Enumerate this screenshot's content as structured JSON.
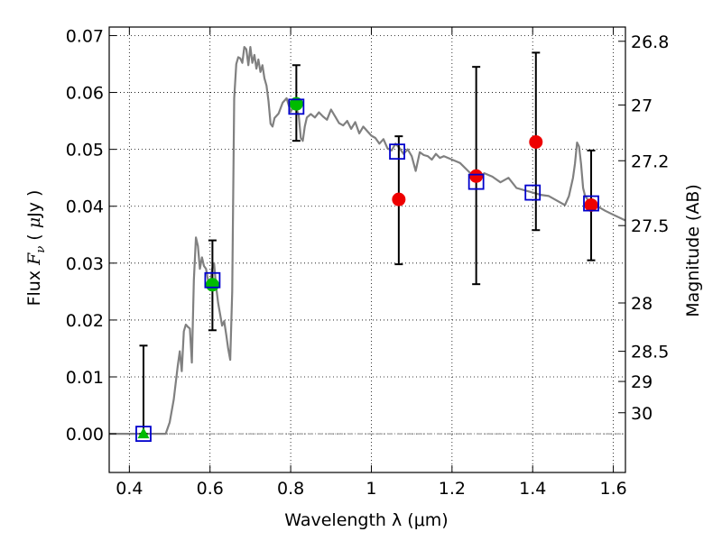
{
  "chart_data": {
    "type": "scatter",
    "xlabel": "Wavelength  λ (μm)",
    "ylabel": "Flux  F_ν  ( μJy )",
    "ylabel_parts": [
      "Flux  ",
      "F",
      "ν",
      "  ( ",
      "μ",
      "Jy )"
    ],
    "ylabel_right": "Magnitude (AB)",
    "xlim": [
      0.35,
      1.63
    ],
    "ylim": [
      -0.0068,
      0.0715
    ],
    "grid": true,
    "x_ticks": [
      0.4,
      0.6,
      0.8,
      1.0,
      1.2,
      1.4,
      1.6
    ],
    "x_tick_labels": [
      "0.4",
      "0.6",
      "0.8",
      "1",
      "1.2",
      "1.4",
      "1.6"
    ],
    "y_ticks": [
      0.0,
      0.01,
      0.02,
      0.03,
      0.04,
      0.05,
      0.06,
      0.07
    ],
    "y_tick_labels": [
      "0.00",
      "0.01",
      "0.02",
      "0.03",
      "0.04",
      "0.05",
      "0.06",
      "0.07"
    ],
    "right_ticks": [
      {
        "label": "26.8",
        "flux": 0.069
      },
      {
        "label": "27",
        "flux": 0.0578
      },
      {
        "label": "27.2",
        "flux": 0.048
      },
      {
        "label": "27.5",
        "flux": 0.0366
      },
      {
        "label": "28",
        "flux": 0.023
      },
      {
        "label": "28.5",
        "flux": 0.0145
      },
      {
        "label": "29",
        "flux": 0.0092
      },
      {
        "label": "30",
        "flux": 0.0037
      }
    ],
    "zero_line": 0.0,
    "colors": {
      "model": "#808080",
      "model_photometry": "#0000cc",
      "detected": "#00bb00",
      "nondetected": "#ee0000",
      "errorbar": "#000000"
    },
    "model_sed": {
      "x": [
        0.35,
        0.49,
        0.5,
        0.51,
        0.52,
        0.525,
        0.53,
        0.535,
        0.54,
        0.545,
        0.55,
        0.555,
        0.56,
        0.565,
        0.57,
        0.575,
        0.58,
        0.585,
        0.59,
        0.595,
        0.6,
        0.605,
        0.61,
        0.615,
        0.62,
        0.625,
        0.63,
        0.635,
        0.64,
        0.645,
        0.65,
        0.655,
        0.66,
        0.665,
        0.67,
        0.675,
        0.68,
        0.685,
        0.69,
        0.695,
        0.7,
        0.705,
        0.71,
        0.715,
        0.72,
        0.725,
        0.73,
        0.735,
        0.74,
        0.745,
        0.75,
        0.755,
        0.76,
        0.77,
        0.78,
        0.79,
        0.8,
        0.81,
        0.82,
        0.825,
        0.83,
        0.835,
        0.84,
        0.85,
        0.86,
        0.87,
        0.88,
        0.89,
        0.9,
        0.91,
        0.92,
        0.93,
        0.94,
        0.95,
        0.96,
        0.97,
        0.98,
        0.99,
        1.0,
        1.01,
        1.02,
        1.03,
        1.04,
        1.05,
        1.06,
        1.07,
        1.08,
        1.09,
        1.1,
        1.11,
        1.12,
        1.13,
        1.14,
        1.15,
        1.16,
        1.17,
        1.18,
        1.2,
        1.22,
        1.24,
        1.26,
        1.28,
        1.3,
        1.32,
        1.34,
        1.36,
        1.38,
        1.4,
        1.42,
        1.44,
        1.46,
        1.48,
        1.49,
        1.5,
        1.505,
        1.51,
        1.515,
        1.52,
        1.525,
        1.53,
        1.54,
        1.56,
        1.58,
        1.6,
        1.63
      ],
      "y": [
        0.0,
        0.0,
        0.002,
        0.006,
        0.012,
        0.0145,
        0.011,
        0.018,
        0.0192,
        0.0188,
        0.0185,
        0.0125,
        0.027,
        0.0345,
        0.033,
        0.029,
        0.031,
        0.0295,
        0.029,
        0.027,
        0.026,
        0.029,
        0.03,
        0.026,
        0.023,
        0.021,
        0.019,
        0.0198,
        0.0175,
        0.015,
        0.013,
        0.025,
        0.059,
        0.065,
        0.0662,
        0.066,
        0.0652,
        0.068,
        0.0676,
        0.0648,
        0.068,
        0.0652,
        0.0666,
        0.0642,
        0.0658,
        0.0636,
        0.0648,
        0.0625,
        0.0612,
        0.0585,
        0.0545,
        0.054,
        0.0555,
        0.0563,
        0.0582,
        0.059,
        0.0566,
        0.058,
        0.056,
        0.052,
        0.0515,
        0.054,
        0.0556,
        0.0562,
        0.0556,
        0.0565,
        0.0558,
        0.0552,
        0.057,
        0.0558,
        0.0546,
        0.0542,
        0.055,
        0.0536,
        0.0548,
        0.0528,
        0.054,
        0.0532,
        0.0524,
        0.052,
        0.051,
        0.0518,
        0.0502,
        0.0498,
        0.051,
        0.0502,
        0.0492,
        0.05,
        0.0488,
        0.0462,
        0.0495,
        0.049,
        0.0488,
        0.0482,
        0.0492,
        0.0485,
        0.0488,
        0.0482,
        0.0476,
        0.0462,
        0.0448,
        0.0458,
        0.0452,
        0.0442,
        0.045,
        0.0432,
        0.0428,
        0.0424,
        0.042,
        0.0418,
        0.041,
        0.0402,
        0.0418,
        0.045,
        0.0475,
        0.0512,
        0.0505,
        0.0475,
        0.0432,
        0.0418,
        0.0408,
        0.04,
        0.0392,
        0.0385,
        0.0375
      ]
    },
    "model_photometry": {
      "x": [
        0.435,
        0.606,
        0.814,
        1.064,
        1.26,
        1.4,
        1.545
      ],
      "y": [
        0.0,
        0.027,
        0.0575,
        0.0496,
        0.0443,
        0.0424,
        0.0405
      ]
    },
    "observed": [
      {
        "x": 0.435,
        "y": 0.0,
        "yerr_low": 0.0,
        "yerr_high": 0.0155,
        "marker": "triangle",
        "status": "detected"
      },
      {
        "x": 0.606,
        "y": 0.0262,
        "yerr_low": 0.0182,
        "yerr_high": 0.034,
        "marker": "circle",
        "status": "detected"
      },
      {
        "x": 0.814,
        "y": 0.058,
        "yerr_low": 0.0515,
        "yerr_high": 0.0648,
        "marker": "circle",
        "status": "detected"
      },
      {
        "x": 1.068,
        "y": 0.0412,
        "yerr_low": 0.0298,
        "yerr_high": 0.0523,
        "marker": "circle",
        "status": "nondetected"
      },
      {
        "x": 1.26,
        "y": 0.0453,
        "yerr_low": 0.0263,
        "yerr_high": 0.0645,
        "marker": "circle",
        "status": "nondetected"
      },
      {
        "x": 1.408,
        "y": 0.0513,
        "yerr_low": 0.0358,
        "yerr_high": 0.067,
        "marker": "circle",
        "status": "nondetected"
      },
      {
        "x": 1.545,
        "y": 0.0402,
        "yerr_low": 0.0305,
        "yerr_high": 0.0498,
        "marker": "circle",
        "status": "nondetected"
      }
    ]
  }
}
